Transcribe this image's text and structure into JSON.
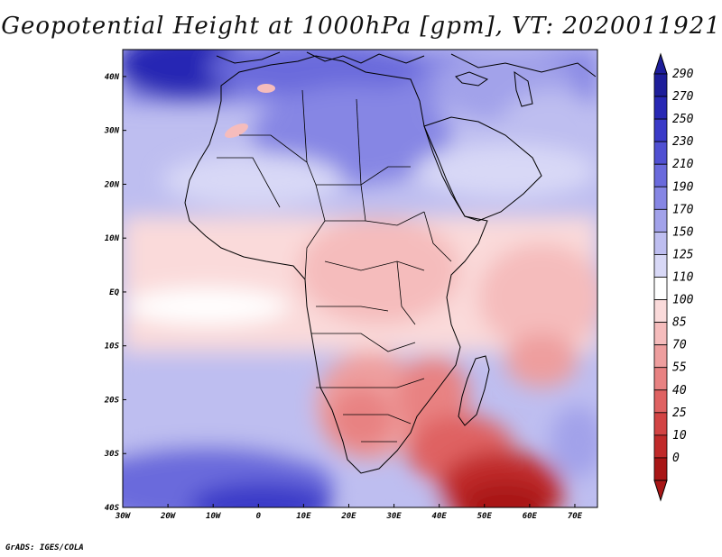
{
  "title": "Geopotential Height at 1000hPa [gpm], VT: 2020011921",
  "credit": "GrADS: IGES/COLA",
  "map": {
    "lat_labels": [
      "40N",
      "30N",
      "20N",
      "10N",
      "EQ",
      "10S",
      "20S",
      "30S",
      "40S"
    ],
    "lat_values": [
      40,
      30,
      20,
      10,
      0,
      -10,
      -20,
      -30,
      -40
    ],
    "lon_labels": [
      "30W",
      "20W",
      "10W",
      "0",
      "10E",
      "20E",
      "30E",
      "40E",
      "50E",
      "60E",
      "70E"
    ],
    "lon_values": [
      -30,
      -20,
      -10,
      0,
      10,
      20,
      30,
      40,
      50,
      60,
      70
    ],
    "lon_range": [
      -30,
      75
    ],
    "lat_range": [
      -40,
      45
    ]
  },
  "colorbar": {
    "labels": [
      "290",
      "270",
      "250",
      "230",
      "210",
      "190",
      "170",
      "150",
      "125",
      "110",
      "100",
      "85",
      "70",
      "55",
      "40",
      "25",
      "10",
      "0"
    ],
    "colors": [
      "#1e1e9a",
      "#2828b4",
      "#3a3ac8",
      "#5050d2",
      "#6a6adc",
      "#8686e4",
      "#a2a2ea",
      "#bebef0",
      "#d8d8f6",
      "#ffffff",
      "#fadada",
      "#f5bcbc",
      "#ee9e9e",
      "#e88282",
      "#df6262",
      "#d24444",
      "#c02a2a",
      "#a81616"
    ]
  }
}
